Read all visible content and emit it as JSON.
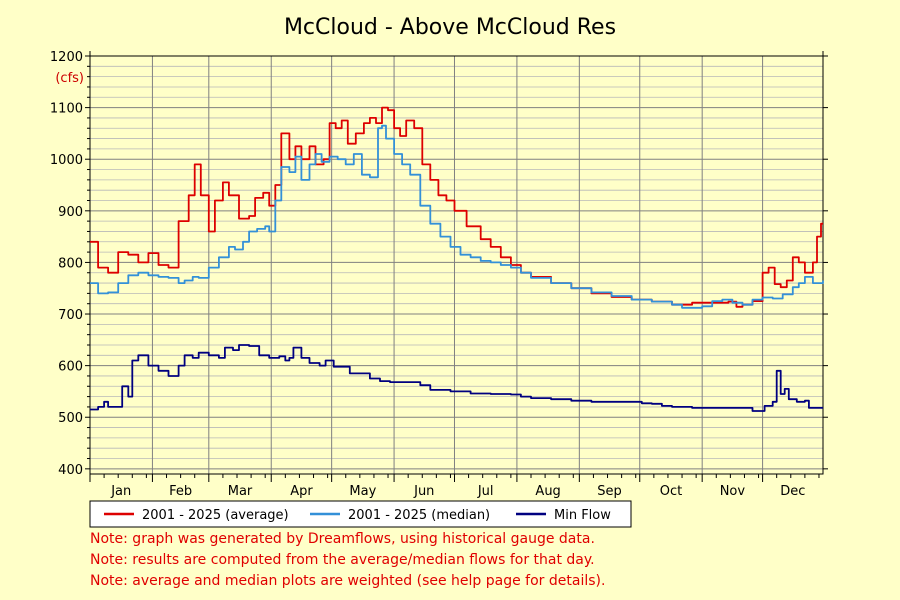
{
  "chart_data": {
    "type": "line",
    "title": "McCloud - Above McCloud Res",
    "ylabel": "(cfs)",
    "ylim": [
      390,
      1200
    ],
    "yticks": [
      400,
      500,
      600,
      700,
      800,
      900,
      1000,
      1100,
      1200
    ],
    "months": [
      "Jan",
      "Feb",
      "Mar",
      "Apr",
      "May",
      "Jun",
      "Jul",
      "Aug",
      "Sep",
      "Oct",
      "Nov",
      "Dec"
    ],
    "xlim_days": [
      1,
      365
    ],
    "grid": true,
    "legend_position": "bottom",
    "series": [
      {
        "name": "2001 - 2025 (average)",
        "color": "#dd0000",
        "points": [
          [
            1,
            840
          ],
          [
            5,
            790
          ],
          [
            10,
            780
          ],
          [
            15,
            820
          ],
          [
            20,
            815
          ],
          [
            25,
            800
          ],
          [
            30,
            818
          ],
          [
            35,
            795
          ],
          [
            40,
            790
          ],
          [
            42,
            790
          ],
          [
            45,
            880
          ],
          [
            50,
            930
          ],
          [
            53,
            990
          ],
          [
            56,
            930
          ],
          [
            60,
            860
          ],
          [
            63,
            920
          ],
          [
            67,
            955
          ],
          [
            70,
            930
          ],
          [
            75,
            885
          ],
          [
            80,
            890
          ],
          [
            83,
            925
          ],
          [
            87,
            935
          ],
          [
            90,
            910
          ],
          [
            93,
            950
          ],
          [
            96,
            1050
          ],
          [
            100,
            1000
          ],
          [
            103,
            1025
          ],
          [
            106,
            1000
          ],
          [
            110,
            1025
          ],
          [
            113,
            990
          ],
          [
            117,
            1000
          ],
          [
            120,
            1070
          ],
          [
            123,
            1060
          ],
          [
            126,
            1075
          ],
          [
            129,
            1030
          ],
          [
            133,
            1050
          ],
          [
            137,
            1070
          ],
          [
            140,
            1080
          ],
          [
            143,
            1070
          ],
          [
            146,
            1100
          ],
          [
            149,
            1095
          ],
          [
            152,
            1060
          ],
          [
            155,
            1045
          ],
          [
            158,
            1075
          ],
          [
            162,
            1060
          ],
          [
            166,
            990
          ],
          [
            170,
            960
          ],
          [
            174,
            930
          ],
          [
            178,
            920
          ],
          [
            182,
            900
          ],
          [
            188,
            870
          ],
          [
            195,
            845
          ],
          [
            200,
            830
          ],
          [
            205,
            810
          ],
          [
            210,
            795
          ],
          [
            215,
            780
          ],
          [
            220,
            772
          ],
          [
            230,
            760
          ],
          [
            240,
            750
          ],
          [
            250,
            740
          ],
          [
            260,
            733
          ],
          [
            270,
            728
          ],
          [
            280,
            724
          ],
          [
            290,
            718
          ],
          [
            300,
            722
          ],
          [
            310,
            722
          ],
          [
            318,
            724
          ],
          [
            322,
            714
          ],
          [
            325,
            718
          ],
          [
            330,
            725
          ],
          [
            335,
            780
          ],
          [
            338,
            790
          ],
          [
            341,
            758
          ],
          [
            344,
            752
          ],
          [
            347,
            765
          ],
          [
            350,
            810
          ],
          [
            353,
            800
          ],
          [
            356,
            780
          ],
          [
            360,
            800
          ],
          [
            362,
            850
          ],
          [
            364,
            875
          ],
          [
            365,
            875
          ]
        ]
      },
      {
        "name": "2001 - 2025 (median)",
        "color": "#3390d8",
        "points": [
          [
            1,
            760
          ],
          [
            5,
            740
          ],
          [
            10,
            742
          ],
          [
            15,
            760
          ],
          [
            20,
            775
          ],
          [
            25,
            780
          ],
          [
            30,
            775
          ],
          [
            35,
            772
          ],
          [
            40,
            770
          ],
          [
            45,
            760
          ],
          [
            48,
            765
          ],
          [
            52,
            772
          ],
          [
            55,
            770
          ],
          [
            60,
            790
          ],
          [
            65,
            810
          ],
          [
            70,
            830
          ],
          [
            73,
            825
          ],
          [
            77,
            840
          ],
          [
            80,
            860
          ],
          [
            84,
            865
          ],
          [
            88,
            870
          ],
          [
            90,
            860
          ],
          [
            93,
            920
          ],
          [
            96,
            985
          ],
          [
            100,
            975
          ],
          [
            103,
            1005
          ],
          [
            106,
            960
          ],
          [
            110,
            990
          ],
          [
            113,
            1010
          ],
          [
            116,
            995
          ],
          [
            120,
            1005
          ],
          [
            124,
            1000
          ],
          [
            128,
            990
          ],
          [
            132,
            1010
          ],
          [
            136,
            970
          ],
          [
            140,
            965
          ],
          [
            144,
            1060
          ],
          [
            146,
            1065
          ],
          [
            148,
            1040
          ],
          [
            152,
            1010
          ],
          [
            156,
            990
          ],
          [
            160,
            970
          ],
          [
            165,
            910
          ],
          [
            170,
            875
          ],
          [
            175,
            850
          ],
          [
            180,
            830
          ],
          [
            185,
            815
          ],
          [
            190,
            810
          ],
          [
            195,
            803
          ],
          [
            200,
            800
          ],
          [
            205,
            795
          ],
          [
            210,
            790
          ],
          [
            215,
            780
          ],
          [
            220,
            770
          ],
          [
            230,
            760
          ],
          [
            240,
            750
          ],
          [
            250,
            742
          ],
          [
            260,
            735
          ],
          [
            270,
            728
          ],
          [
            280,
            724
          ],
          [
            290,
            718
          ],
          [
            295,
            712
          ],
          [
            300,
            712
          ],
          [
            305,
            715
          ],
          [
            310,
            725
          ],
          [
            315,
            728
          ],
          [
            320,
            722
          ],
          [
            325,
            718
          ],
          [
            330,
            728
          ],
          [
            335,
            732
          ],
          [
            340,
            730
          ],
          [
            345,
            738
          ],
          [
            350,
            752
          ],
          [
            353,
            760
          ],
          [
            356,
            772
          ],
          [
            360,
            760
          ],
          [
            365,
            765
          ]
        ]
      },
      {
        "name": "Min Flow",
        "color": "#000080",
        "points": [
          [
            1,
            515
          ],
          [
            5,
            520
          ],
          [
            8,
            530
          ],
          [
            10,
            520
          ],
          [
            15,
            520
          ],
          [
            17,
            560
          ],
          [
            20,
            540
          ],
          [
            22,
            610
          ],
          [
            25,
            620
          ],
          [
            30,
            600
          ],
          [
            35,
            590
          ],
          [
            40,
            580
          ],
          [
            43,
            580
          ],
          [
            45,
            600
          ],
          [
            48,
            620
          ],
          [
            52,
            615
          ],
          [
            55,
            625
          ],
          [
            60,
            620
          ],
          [
            65,
            615
          ],
          [
            68,
            635
          ],
          [
            72,
            630
          ],
          [
            75,
            640
          ],
          [
            80,
            638
          ],
          [
            85,
            620
          ],
          [
            90,
            615
          ],
          [
            95,
            618
          ],
          [
            98,
            610
          ],
          [
            100,
            615
          ],
          [
            102,
            635
          ],
          [
            106,
            615
          ],
          [
            110,
            605
          ],
          [
            115,
            600
          ],
          [
            118,
            610
          ],
          [
            122,
            598
          ],
          [
            130,
            585
          ],
          [
            140,
            575
          ],
          [
            145,
            570
          ],
          [
            150,
            568
          ],
          [
            160,
            568
          ],
          [
            165,
            562
          ],
          [
            170,
            553
          ],
          [
            180,
            550
          ],
          [
            190,
            546
          ],
          [
            200,
            545
          ],
          [
            210,
            544
          ],
          [
            215,
            540
          ],
          [
            220,
            537
          ],
          [
            230,
            535
          ],
          [
            240,
            532
          ],
          [
            250,
            530
          ],
          [
            260,
            530
          ],
          [
            270,
            530
          ],
          [
            275,
            527
          ],
          [
            280,
            526
          ],
          [
            285,
            522
          ],
          [
            290,
            520
          ],
          [
            300,
            518
          ],
          [
            310,
            518
          ],
          [
            320,
            518
          ],
          [
            330,
            512
          ],
          [
            333,
            512
          ],
          [
            336,
            522
          ],
          [
            340,
            530
          ],
          [
            342,
            590
          ],
          [
            344,
            545
          ],
          [
            346,
            555
          ],
          [
            348,
            535
          ],
          [
            352,
            530
          ],
          [
            356,
            532
          ],
          [
            358,
            518
          ],
          [
            365,
            518
          ]
        ]
      }
    ]
  },
  "notes": [
    "Note: graph was generated by Dreamflows, using historical gauge data.",
    "Note: results are computed from the average/median flows for that day.",
    "Note: average and median plots are weighted (see help page for details)."
  ]
}
